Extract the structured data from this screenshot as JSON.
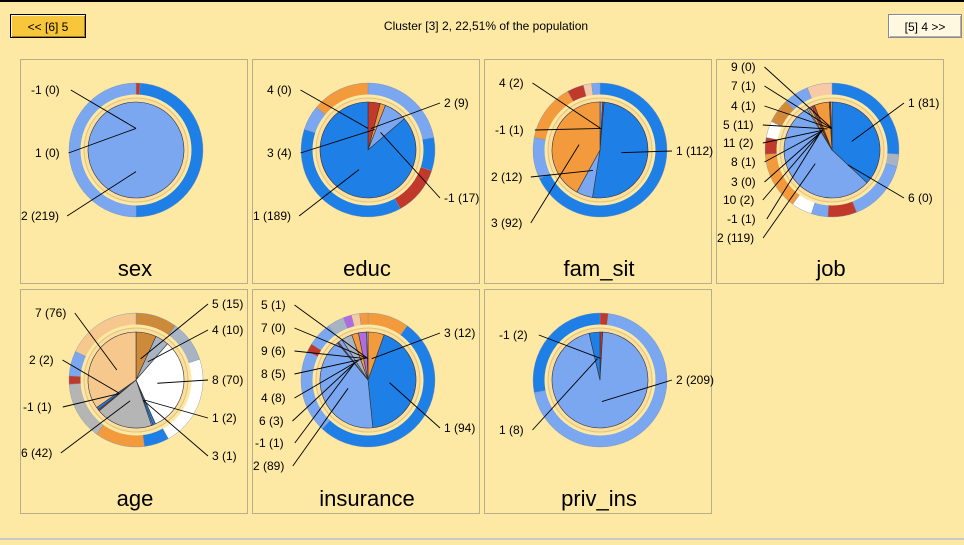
{
  "nav": {
    "prev_label": "<< [6] 5",
    "next_label": "[5] 4 >>"
  },
  "page_title": "Cluster [3] 2, 22,51% of the population",
  "chart_data": [
    {
      "type": "pie",
      "title": "sex",
      "slices": [
        {
          "label": "-1 (0)",
          "value": 0,
          "ring_color": "#c0392b"
        },
        {
          "label": "1 (0)",
          "value": 0,
          "ring_color": "#1e7fe6"
        },
        {
          "label": "2 (219)",
          "value": 219,
          "color": "#7aa7f0",
          "ring_color": "#7aa7f0"
        }
      ],
      "ring": [
        {
          "color": "#c0392b",
          "fraction": 0.01
        },
        {
          "color": "#1e7fe6",
          "fraction": 0.49
        },
        {
          "color": "#7aa7f0",
          "fraction": 0.5
        }
      ]
    },
    {
      "type": "pie",
      "title": "educ",
      "slices": [
        {
          "label": "4 (0)",
          "value": 0,
          "color": "#f39b3c"
        },
        {
          "label": "2 (9)",
          "value": 9,
          "color": "#c0392b"
        },
        {
          "label": "3 (4)",
          "value": 4,
          "color": "#f39b3c"
        },
        {
          "label": "-1 (17)",
          "value": 17,
          "color": "#7aa7f0"
        },
        {
          "label": "1 (189)",
          "value": 189,
          "color": "#1e7fe6"
        }
      ],
      "ring": [
        {
          "color": "#7aa7f0",
          "fraction": 0.22
        },
        {
          "color": "#1e7fe6",
          "fraction": 0.08
        },
        {
          "color": "#c0392b",
          "fraction": 0.12
        },
        {
          "color": "#1e7fe6",
          "fraction": 0.38
        },
        {
          "color": "#7aa7f0",
          "fraction": 0.06
        },
        {
          "color": "#f39b3c",
          "fraction": 0.14
        }
      ]
    },
    {
      "type": "pie",
      "title": "fam_sit",
      "slices": [
        {
          "label": "4 (2)",
          "value": 2,
          "color": "#7aa7f0"
        },
        {
          "label": "-1 (1)",
          "value": 1,
          "color": "#c0392b"
        },
        {
          "label": "1 (112)",
          "value": 112,
          "color": "#1e7fe6"
        },
        {
          "label": "2 (12)",
          "value": 12,
          "color": "#7aa7f0"
        },
        {
          "label": "3 (92)",
          "value": 92,
          "color": "#f39b3c"
        }
      ],
      "ring": [
        {
          "color": "#1e7fe6",
          "fraction": 0.68
        },
        {
          "color": "#7aa7f0",
          "fraction": 0.1
        },
        {
          "color": "#f39b3c",
          "fraction": 0.14
        },
        {
          "color": "#c0392b",
          "fraction": 0.04
        },
        {
          "color": "#f7c9a4",
          "fraction": 0.02
        },
        {
          "color": "#7aa7f0",
          "fraction": 0.02
        }
      ]
    },
    {
      "type": "pie",
      "title": "job",
      "slices": [
        {
          "label": "1 (81)",
          "value": 81,
          "color": "#1e7fe6"
        },
        {
          "label": "6 (0)",
          "value": 0,
          "color": "#a8b4c4"
        },
        {
          "label": "2 (119)",
          "value": 119,
          "color": "#7aa7f0"
        },
        {
          "label": "-1 (1)",
          "value": 1,
          "color": "#ffffff"
        },
        {
          "label": "10 (2)",
          "value": 2,
          "color": "#f39b3c"
        },
        {
          "label": "3 (0)",
          "value": 0,
          "color": "#f39b3c"
        },
        {
          "label": "8 (1)",
          "value": 1,
          "color": "#a8b4c4"
        },
        {
          "label": "11 (2)",
          "value": 2,
          "color": "#c0392b"
        },
        {
          "label": "5 (11)",
          "value": 11,
          "color": "#f39b3c"
        },
        {
          "label": "4 (1)",
          "value": 1,
          "color": "#c0392b"
        },
        {
          "label": "7 (1)",
          "value": 1,
          "color": "#f7c9a4"
        },
        {
          "label": "9 (0)",
          "value": 0,
          "color": "#7aa7f0"
        }
      ],
      "ring": [
        {
          "color": "#1e7fe6",
          "fraction": 0.26
        },
        {
          "color": "#a8b4c4",
          "fraction": 0.03
        },
        {
          "color": "#7aa7f0",
          "fraction": 0.15
        },
        {
          "color": "#c0392b",
          "fraction": 0.07
        },
        {
          "color": "#7aa7f0",
          "fraction": 0.04
        },
        {
          "color": "#ffffff",
          "fraction": 0.05
        },
        {
          "color": "#f39b3c",
          "fraction": 0.14
        },
        {
          "color": "#c0392b",
          "fraction": 0.04
        },
        {
          "color": "#ffffff",
          "fraction": 0.04
        },
        {
          "color": "#d28a3a",
          "fraction": 0.06
        },
        {
          "color": "#7aa7f0",
          "fraction": 0.06
        },
        {
          "color": "#f7c9a4",
          "fraction": 0.06
        }
      ]
    },
    {
      "type": "pie",
      "title": "age",
      "slices": [
        {
          "label": "5 (15)",
          "value": 15,
          "color": "#cd8a3a"
        },
        {
          "label": "4 (10)",
          "value": 10,
          "color": "#a8b4c4"
        },
        {
          "label": "8 (70)",
          "value": 70,
          "color": "#ffffff"
        },
        {
          "label": "1 (2)",
          "value": 2,
          "color": "#1e7fe6"
        },
        {
          "label": "3 (1)",
          "value": 1,
          "color": "#7aa7f0"
        },
        {
          "label": "6 (42)",
          "value": 42,
          "color": "#b5b5b5"
        },
        {
          "label": "-1 (1)",
          "value": 1,
          "color": "#c0392b"
        },
        {
          "label": "2 (2)",
          "value": 2,
          "color": "#1e7fe6"
        },
        {
          "label": "7 (76)",
          "value": 76,
          "color": "#f7c88e"
        }
      ],
      "ring": [
        {
          "color": "#cd8a3a",
          "fraction": 0.1
        },
        {
          "color": "#a8b4c4",
          "fraction": 0.1
        },
        {
          "color": "#ffffff",
          "fraction": 0.22
        },
        {
          "color": "#1e7fe6",
          "fraction": 0.06
        },
        {
          "color": "#f39b3c",
          "fraction": 0.12
        },
        {
          "color": "#b5b5b5",
          "fraction": 0.14
        },
        {
          "color": "#c0392b",
          "fraction": 0.02
        },
        {
          "color": "#7aa7f0",
          "fraction": 0.06
        },
        {
          "color": "#f7c88e",
          "fraction": 0.18
        }
      ]
    },
    {
      "type": "pie",
      "title": "insurance",
      "slices": [
        {
          "label": "3 (12)",
          "value": 12,
          "color": "#f39b3c"
        },
        {
          "label": "1 (94)",
          "value": 94,
          "color": "#1e7fe6"
        },
        {
          "label": "2 (89)",
          "value": 89,
          "color": "#7aa7f0"
        },
        {
          "label": "-1 (1)",
          "value": 1,
          "color": "#c0392b"
        },
        {
          "label": "6 (3)",
          "value": 3,
          "color": "#7aa7f0"
        },
        {
          "label": "4 (8)",
          "value": 8,
          "color": "#a8b4c4"
        },
        {
          "label": "8 (5)",
          "value": 5,
          "color": "#f39b3c"
        },
        {
          "label": "9 (6)",
          "value": 6,
          "color": "#b06be0"
        },
        {
          "label": "7 (0)",
          "value": 0,
          "color": "#f7c9a4"
        },
        {
          "label": "5 (1)",
          "value": 1,
          "color": "#b5b5b5"
        }
      ],
      "ring": [
        {
          "color": "#f39b3c",
          "fraction": 0.1
        },
        {
          "color": "#1e7fe6",
          "fraction": 0.52
        },
        {
          "color": "#7aa7f0",
          "fraction": 0.2
        },
        {
          "color": "#c0392b",
          "fraction": 0.02
        },
        {
          "color": "#7aa7f0",
          "fraction": 0.06
        },
        {
          "color": "#a8b4c4",
          "fraction": 0.04
        },
        {
          "color": "#b06be0",
          "fraction": 0.02
        },
        {
          "color": "#f7c9a4",
          "fraction": 0.02
        },
        {
          "color": "#f39b3c",
          "fraction": 0.02
        }
      ]
    },
    {
      "type": "pie",
      "title": "priv_ins",
      "slices": [
        {
          "label": "-1 (2)",
          "value": 2,
          "color": "#c0392b"
        },
        {
          "label": "2 (209)",
          "value": 209,
          "color": "#7aa7f0"
        },
        {
          "label": "1 (8)",
          "value": 8,
          "color": "#1e7fe6"
        }
      ],
      "ring": [
        {
          "color": "#c0392b",
          "fraction": 0.02
        },
        {
          "color": "#7aa7f0",
          "fraction": 0.7
        },
        {
          "color": "#1e7fe6",
          "fraction": 0.28
        }
      ]
    }
  ]
}
